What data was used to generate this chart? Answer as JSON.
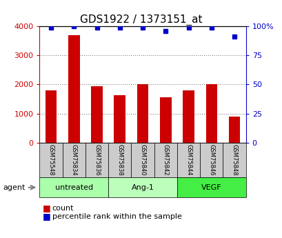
{
  "title": "GDS1922 / 1373151_at",
  "samples": [
    "GSM75548",
    "GSM75834",
    "GSM75836",
    "GSM75838",
    "GSM75840",
    "GSM75842",
    "GSM75844",
    "GSM75846",
    "GSM75848"
  ],
  "counts": [
    1800,
    3700,
    1950,
    1630,
    2000,
    1560,
    1800,
    2000,
    900
  ],
  "percentiles": [
    99,
    100,
    99,
    99,
    99,
    96,
    99,
    99,
    91
  ],
  "ylim_left": [
    0,
    4000
  ],
  "ylim_right": [
    0,
    100
  ],
  "yticks_left": [
    0,
    1000,
    2000,
    3000,
    4000
  ],
  "yticks_right": [
    0,
    25,
    50,
    75,
    100
  ],
  "bar_color": "#cc0000",
  "dot_color": "#0000cc",
  "groups": [
    {
      "label": "untreated",
      "start": 0,
      "end": 3,
      "color": "#aaffaa"
    },
    {
      "label": "Ang-1",
      "start": 3,
      "end": 6,
      "color": "#bbffbb"
    },
    {
      "label": "VEGF",
      "start": 6,
      "end": 9,
      "color": "#44ee44"
    }
  ],
  "sample_cell_color": "#cccccc",
  "legend_count_label": "count",
  "legend_pct_label": "percentile rank within the sample",
  "agent_label": "agent",
  "title_fontsize": 11,
  "tick_fontsize": 8,
  "legend_fontsize": 8
}
